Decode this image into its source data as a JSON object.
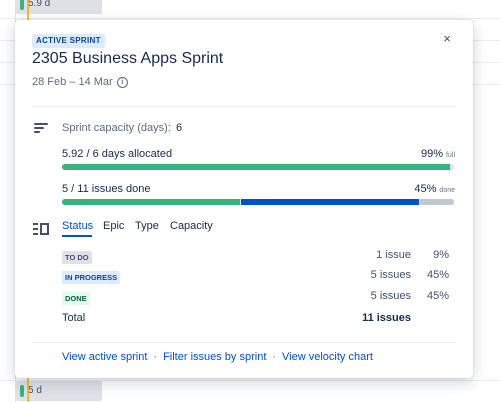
{
  "background": {
    "top_chip": "5.9 d",
    "bottom_chip": "5 d"
  },
  "popup": {
    "badge": "ACTIVE SPRINT",
    "close_glyph": "×",
    "title": "2305 Business Apps Sprint",
    "dates": "28 Feb – 14 Mar",
    "info_glyph": "i",
    "capacity": {
      "label": "Sprint capacity (days):",
      "value": "6"
    },
    "allocation": {
      "label": "5.92 / 6 days allocated",
      "percent": "99%",
      "percent_suffix": "full",
      "fraction": 0.99
    },
    "issues_done": {
      "label": "5 / 11 issues done",
      "percent": "45%",
      "percent_suffix": "done",
      "segments": {
        "done": 0.45,
        "in_progress": 0.45,
        "to_do": 0.09
      }
    },
    "tabs": [
      {
        "label": "Status",
        "active": true
      },
      {
        "label": "Epic",
        "active": false
      },
      {
        "label": "Type",
        "active": false
      },
      {
        "label": "Capacity",
        "active": false
      }
    ],
    "statuses": [
      {
        "label": "TO DO",
        "count": "1 issue",
        "percent": "9%"
      },
      {
        "label": "IN PROGRESS",
        "count": "5 issues",
        "percent": "45%"
      },
      {
        "label": "DONE",
        "count": "5 issues",
        "percent": "45%"
      }
    ],
    "total": {
      "label": "Total",
      "count": "11 issues"
    },
    "footer": {
      "link1": "View active sprint",
      "link2": "Filter issues by sprint",
      "link3": "View velocity chart",
      "separator": "·"
    }
  },
  "colors": {
    "green": "#36B37E",
    "blue": "#0052CC",
    "grey": "#C1C7D0"
  }
}
